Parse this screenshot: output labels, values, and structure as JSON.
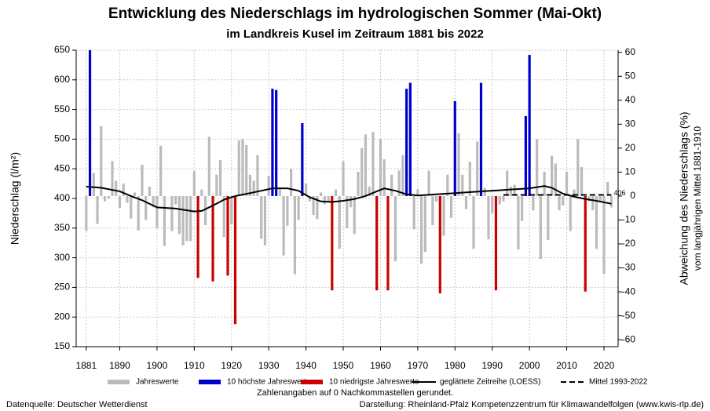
{
  "chart_data": {
    "type": "bar",
    "title": "Entwicklung des Niederschlags im hydrologischen Sommer (Mai-Okt)",
    "subtitle": "im Landkreis Kusel im Zeitraum 1881 bis 2022",
    "y_label": "Niederschlag (l/m²)",
    "y2_label": [
      "Abweichung des Niederschlags (%)",
      "vom langjährigen Mittel 1881-1910"
    ],
    "note": "Zahlenangaben auf 0 Nachkommastellen gerundet.",
    "source": "Datenquelle: Deutscher Wetterdienst",
    "credit": "Darstellung: Rheinland-Pfalz Kompetenzzentrum für Klimawandelfolgen (www.kwis-rlp.de)",
    "xlim": [
      1878.3,
      2023.8
    ],
    "xticks": [
      1881,
      1890,
      1900,
      1910,
      1920,
      1930,
      1940,
      1950,
      1960,
      1970,
      1980,
      1990,
      2000,
      2010,
      2020
    ],
    "ylim": [
      150,
      650
    ],
    "yticks": [
      150,
      200,
      250,
      300,
      350,
      400,
      450,
      500,
      550,
      600,
      650
    ],
    "y2lim": [
      -62.9,
      60.9
    ],
    "y2ticks": [
      -60,
      -50,
      -40,
      -30,
      -20,
      -10,
      0,
      10,
      20,
      30,
      40,
      50,
      60
    ],
    "grid": true,
    "series": [
      {
        "name": "Jahreswerte",
        "color": "#bbbbbb",
        "x": [
          1881,
          1883,
          1884,
          1885,
          1886,
          1887,
          1888,
          1889,
          1890,
          1891,
          1892,
          1893,
          1894,
          1895,
          1896,
          1897,
          1898,
          1899,
          1900,
          1901,
          1902,
          1903,
          1904,
          1905,
          1906,
          1907,
          1908,
          1909,
          1910,
          1912,
          1913,
          1914,
          1916,
          1917,
          1918,
          1920,
          1922,
          1923,
          1924,
          1925,
          1926,
          1927,
          1928,
          1929,
          1930,
          1933,
          1934,
          1935,
          1936,
          1937,
          1938,
          1940,
          1941,
          1942,
          1943,
          1944,
          1945,
          1946,
          1948,
          1949,
          1950,
          1951,
          1952,
          1953,
          1954,
          1955,
          1956,
          1957,
          1958,
          1960,
          1961,
          1963,
          1964,
          1965,
          1966,
          1969,
          1970,
          1971,
          1972,
          1973,
          1974,
          1975,
          1977,
          1978,
          1979,
          1981,
          1982,
          1983,
          1984,
          1985,
          1986,
          1988,
          1989,
          1990,
          1992,
          1993,
          1994,
          1995,
          1996,
          1997,
          1998,
          2001,
          2002,
          2003,
          2004,
          2005,
          2006,
          2007,
          2008,
          2009,
          2010,
          2011,
          2012,
          2013,
          2014,
          2016,
          2017,
          2018,
          2019,
          2020,
          2021,
          2022
        ],
        "values": [
          345,
          443,
          357,
          522,
          395,
          400,
          463,
          430,
          384,
          425,
          393,
          366,
          410,
          346,
          457,
          364,
          420,
          385,
          350,
          489,
          320,
          404,
          345,
          390,
          340,
          321,
          328,
          328,
          446,
          415,
          355,
          504,
          440,
          465,
          335,
          356,
          498,
          500,
          490,
          440,
          430,
          473,
          332,
          321,
          438,
          418,
          304,
          354,
          450,
          272,
          364,
          425,
          395,
          372,
          365,
          410,
          390,
          395,
          415,
          315,
          463,
          350,
          385,
          340,
          445,
          485,
          508,
          420,
          512,
          500,
          466,
          440,
          294,
          447,
          473,
          348,
          415,
          290,
          310,
          447,
          355,
          395,
          337,
          440,
          367,
          510,
          440,
          382,
          462,
          315,
          496,
          418,
          331,
          375,
          390,
          395,
          447,
          420,
          423,
          314,
          362,
          380,
          500,
          298,
          445,
          330,
          472,
          459,
          380,
          388,
          445,
          345,
          415,
          500,
          453,
          395,
          380,
          315,
          393,
          273,
          428,
          385
        ]
      },
      {
        "name": "10 höchste Jahreswerte",
        "color": "#0000cc",
        "x": [
          1882,
          1931,
          1932,
          1939,
          1967,
          1968,
          1980,
          1987,
          1999,
          2000
        ],
        "values": [
          665,
          585,
          583,
          527,
          585,
          595,
          564,
          595,
          539,
          642
        ]
      },
      {
        "name": "10 niedrigste Jahreswerte",
        "color": "#cc0000",
        "x": [
          1911,
          1915,
          1919,
          1921,
          1947,
          1959,
          1962,
          1976,
          1991,
          2015
        ],
        "values": [
          266,
          260,
          270,
          188,
          245,
          245,
          245,
          240,
          245,
          243
        ]
      },
      {
        "name": "geglättete Zeitreihe (LOESS)",
        "color": "#000000",
        "type": "line",
        "x": [
          1881,
          1885,
          1890,
          1893,
          1896,
          1900,
          1905,
          1910,
          1912,
          1915,
          1918,
          1921,
          1925,
          1928,
          1931,
          1935,
          1938,
          1941,
          1944,
          1947,
          1950,
          1953,
          1956,
          1959,
          1961,
          1964,
          1967,
          1970,
          1975,
          1980,
          1985,
          1990,
          1995,
          2000,
          2004,
          2006,
          2009,
          2012,
          2015,
          2018,
          2022
        ],
        "values": [
          420,
          418,
          412,
          404,
          397,
          385,
          383,
          378,
          379,
          388,
          398,
          404,
          409,
          413,
          417,
          417,
          413,
          402,
          395,
          394,
          396,
          399,
          404,
          412,
          417,
          413,
          407,
          405,
          407,
          409,
          411,
          413,
          415,
          417,
          421,
          418,
          408,
          403,
          399,
          396,
          391
        ]
      },
      {
        "name": "Mittel 1993-2022",
        "color": "#000000",
        "type": "line",
        "dash": true,
        "x": [
          1993,
          2022
        ],
        "values": [
          406,
          406
        ]
      }
    ]
  }
}
